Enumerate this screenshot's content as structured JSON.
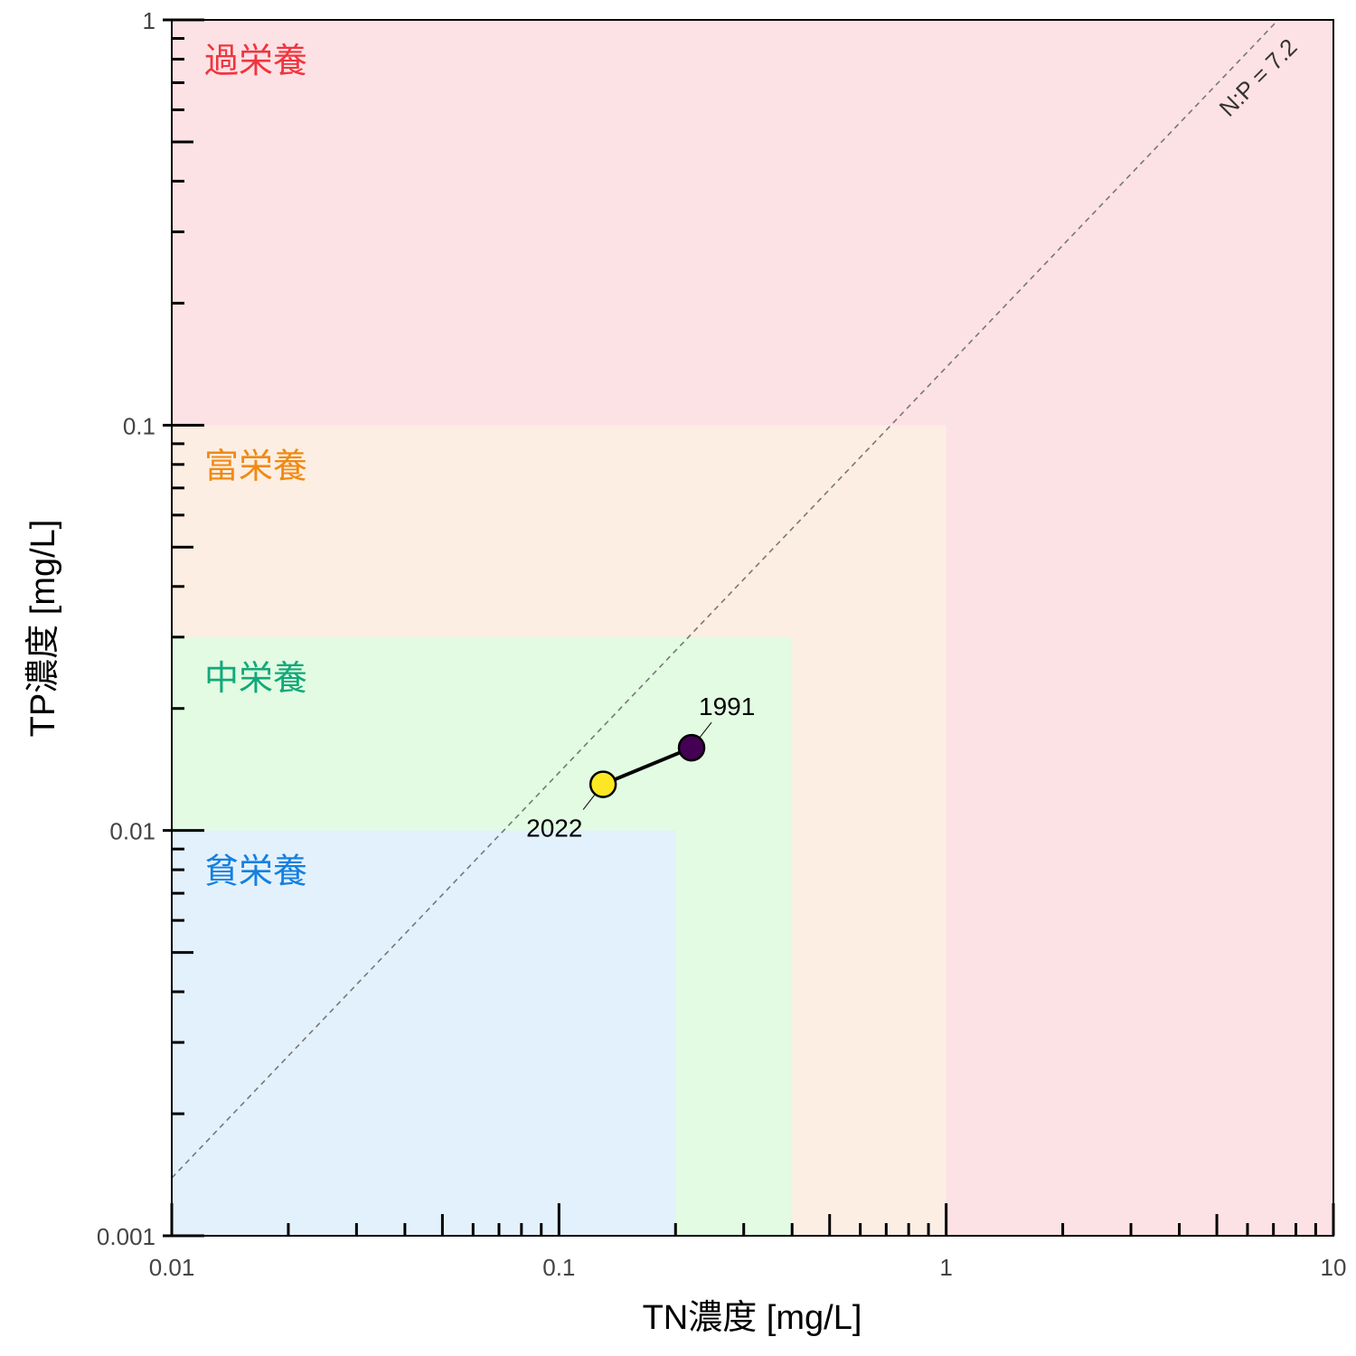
{
  "chart_data": {
    "type": "scatter",
    "xlabel": "TN濃度 [mg/L]",
    "ylabel": "TP濃度 [mg/L]",
    "xscale": "log",
    "yscale": "log",
    "xlim": [
      0.01,
      10
    ],
    "ylim": [
      0.001,
      1
    ],
    "x_ticks": [
      {
        "value": 0.01,
        "label": "0.01"
      },
      {
        "value": 0.1,
        "label": "0.1"
      },
      {
        "value": 1,
        "label": "1"
      },
      {
        "value": 10,
        "label": "10"
      }
    ],
    "y_ticks": [
      {
        "value": 0.001,
        "label": "0.001"
      },
      {
        "value": 0.01,
        "label": "0.01"
      },
      {
        "value": 0.1,
        "label": "0.1"
      },
      {
        "value": 1,
        "label": "1"
      }
    ],
    "zones": [
      {
        "name": "過栄養",
        "tn_max": 10,
        "tp_max": 1,
        "fill": "#fde2e5",
        "text_color": "#f0353f"
      },
      {
        "name": "富栄養",
        "tn_max": 1,
        "tp_max": 0.1,
        "fill": "#fdeee3",
        "text_color": "#f08a12"
      },
      {
        "name": "中栄養",
        "tn_max": 0.4,
        "tp_max": 0.03,
        "fill": "#e2fbe2",
        "text_color": "#12a87a"
      },
      {
        "name": "貧栄養",
        "tn_max": 0.2,
        "tp_max": 0.01,
        "fill": "#e3f1fc",
        "text_color": "#1480e0"
      }
    ],
    "reference_line": {
      "label": "N:P = 7.2",
      "ratio": 7.2,
      "style": "dashed",
      "color": "#777777"
    },
    "grid": false,
    "series": [
      {
        "points": [
          {
            "label": "1991",
            "x": 0.22,
            "y": 0.016,
            "color": "#440154"
          },
          {
            "label": "2022",
            "x": 0.13,
            "y": 0.013,
            "color": "#fde725"
          }
        ]
      }
    ]
  }
}
